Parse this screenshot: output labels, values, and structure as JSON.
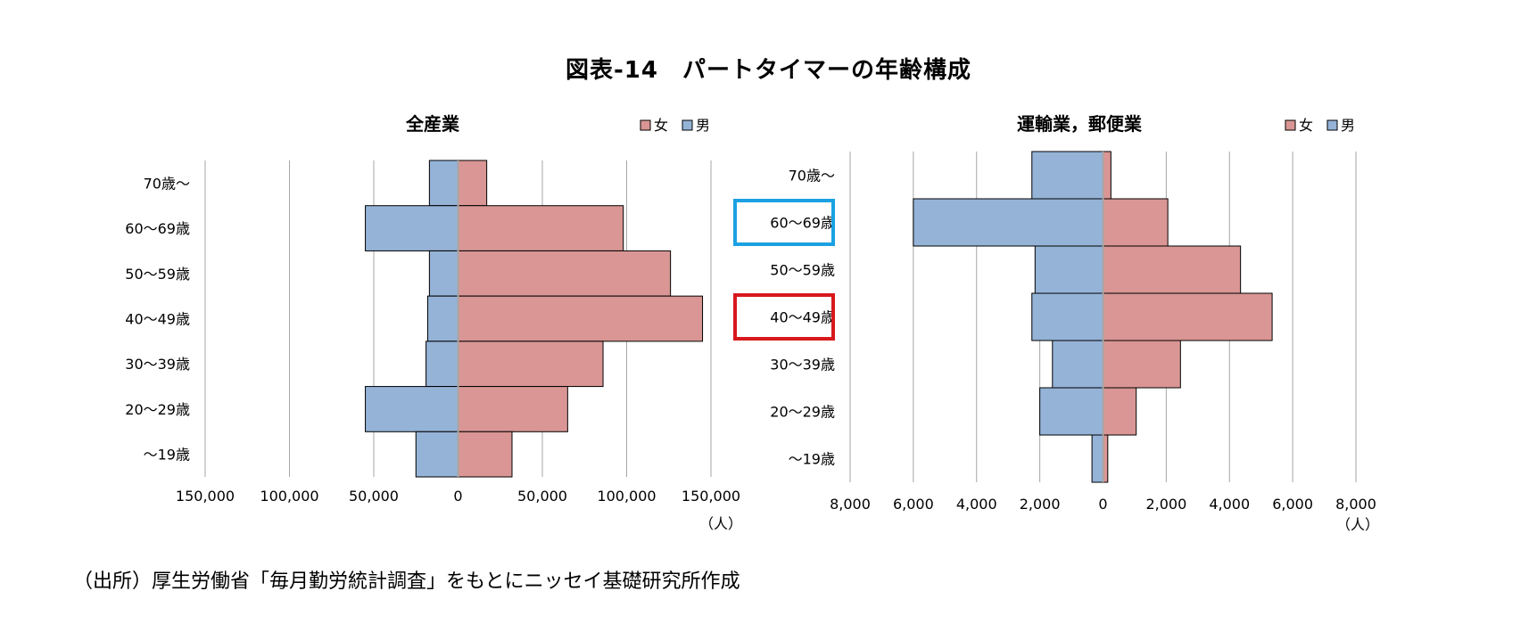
{
  "page": {
    "title": "図表-14　パートタイマーの年齢構成",
    "source": "（出所）厚生労働省「毎月勤労統計調査」をもとにニッセイ基礎研究所作成"
  },
  "colors": {
    "female": "#d99694",
    "male": "#95b3d7",
    "grid": "#a6a6a6",
    "highlight_blue": "#1ba1e2",
    "highlight_red": "#d7191c"
  },
  "chart_data": [
    {
      "type": "bar",
      "orientation": "horizontal-population-pyramid",
      "title": "全産業",
      "categories": [
        "70歳～",
        "60～69歳",
        "50～59歳",
        "40～49歳",
        "30～39歳",
        "20～29歳",
        "～19歳"
      ],
      "series": [
        {
          "name": "女",
          "side": "right",
          "color": "#d99694",
          "values": [
            17000,
            98000,
            126000,
            145000,
            86000,
            65000,
            32000
          ]
        },
        {
          "name": "男",
          "side": "left",
          "color": "#95b3d7",
          "values": [
            17000,
            55000,
            17000,
            18000,
            19000,
            55000,
            25000
          ]
        }
      ],
      "xlim": [
        -150000,
        150000
      ],
      "xticks": [
        -150000,
        -100000,
        -50000,
        0,
        50000,
        100000,
        150000
      ],
      "xtick_labels": [
        "150,000",
        "100,000",
        "50,000",
        "0",
        "50,000",
        "100,000",
        "150,000"
      ],
      "unit": "（人）",
      "legend_position": "top-right",
      "grid": true,
      "highlighted_categories": []
    },
    {
      "type": "bar",
      "orientation": "horizontal-population-pyramid",
      "title": "運輸業，郵便業",
      "categories": [
        "70歳～",
        "60～69歳",
        "50～59歳",
        "40～49歳",
        "30～39歳",
        "20～29歳",
        "～19歳"
      ],
      "series": [
        {
          "name": "女",
          "side": "right",
          "color": "#d99694",
          "values": [
            250,
            2050,
            4350,
            5350,
            2450,
            1050,
            150
          ]
        },
        {
          "name": "男",
          "side": "left",
          "color": "#95b3d7",
          "values": [
            2250,
            6000,
            2150,
            2250,
            1600,
            2000,
            350
          ]
        }
      ],
      "xlim": [
        -8000,
        8000
      ],
      "xticks": [
        -8000,
        -6000,
        -4000,
        -2000,
        0,
        2000,
        4000,
        6000,
        8000
      ],
      "xtick_labels": [
        "8,000",
        "6,000",
        "4,000",
        "2,000",
        "0",
        "2,000",
        "4,000",
        "6,000",
        "8,000"
      ],
      "unit": "（人）",
      "legend_position": "top-right",
      "grid": true,
      "highlighted_categories": [
        {
          "category": "60～69歳",
          "color": "#1ba1e2"
        },
        {
          "category": "40～49歳",
          "color": "#d7191c"
        }
      ]
    }
  ]
}
